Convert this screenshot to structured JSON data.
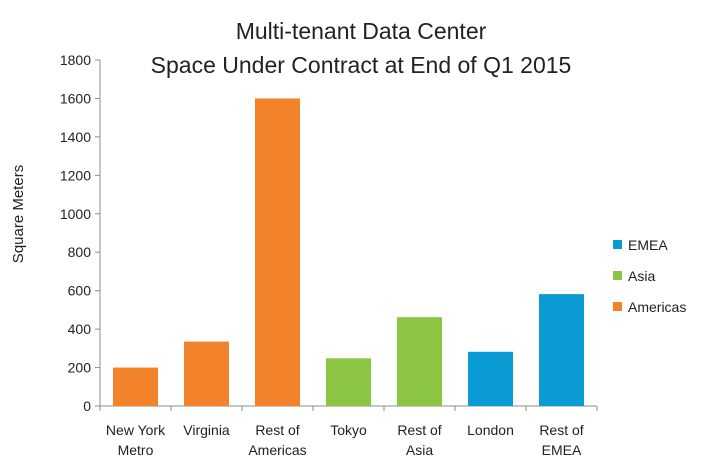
{
  "chart_data": {
    "type": "bar",
    "title": [
      "Multi-tenant Data Center",
      "Space Under Contract at End of Q1 2015"
    ],
    "xlabel": "",
    "ylabel": "Square Meters",
    "ylim": [
      0,
      1800
    ],
    "yticks": [
      0,
      200,
      400,
      600,
      800,
      1000,
      1200,
      1400,
      1600,
      1800
    ],
    "categories": [
      [
        "New York",
        "Metro"
      ],
      [
        "Virginia"
      ],
      [
        "Rest of",
        "Americas"
      ],
      [
        "Tokyo"
      ],
      [
        "Rest of",
        "Asia"
      ],
      [
        "London"
      ],
      [
        "Rest of",
        "EMEA"
      ]
    ],
    "values": [
      200,
      335,
      1600,
      248,
      462,
      282,
      582
    ],
    "bar_groups": [
      "Americas",
      "Americas",
      "Americas",
      "Asia",
      "Asia",
      "EMEA",
      "EMEA"
    ],
    "legend": [
      {
        "name": "EMEA",
        "color": "#0a9ad4"
      },
      {
        "name": "Asia",
        "color": "#8cc541"
      },
      {
        "name": "Americas",
        "color": "#f2832a"
      }
    ],
    "legend_position": "right",
    "grid": false
  }
}
